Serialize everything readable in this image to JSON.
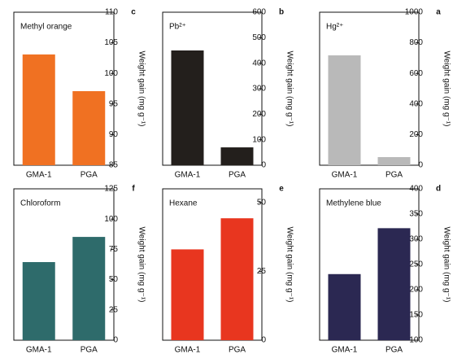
{
  "chart_data": [
    {
      "type": "bar",
      "panel": "a",
      "annotation": "Hg²⁺",
      "y_label": "Weight gain (mg g⁻¹)",
      "categories": [
        "PGA",
        "GMA-1"
      ],
      "values": [
        53,
        718
      ],
      "color": "#b9b9b9",
      "ylim": [
        0,
        1000
      ],
      "yticks": [
        0,
        200,
        400,
        600,
        800,
        1000
      ]
    },
    {
      "type": "bar",
      "panel": "b",
      "annotation": "Pb²⁺",
      "y_label": "Weight gain (mg g⁻¹)",
      "categories": [
        "PGA",
        "GMA-1"
      ],
      "values": [
        70,
        450
      ],
      "color": "#231f1c",
      "ylim": [
        0,
        600
      ],
      "yticks": [
        0,
        100,
        200,
        300,
        400,
        500,
        600
      ]
    },
    {
      "type": "bar",
      "panel": "c",
      "annotation": "Methyl orange",
      "y_label": "Weight gain (mg g⁻¹)",
      "categories": [
        "PGA",
        "GMA-1"
      ],
      "values": [
        97.1,
        103.1
      ],
      "color": "#f07122",
      "ylim": [
        85,
        110
      ],
      "yticks": [
        85,
        90,
        95,
        100,
        105,
        110
      ]
    },
    {
      "type": "bar",
      "panel": "d",
      "annotation": "Methylene blue",
      "y_label": "Weight gain (mg g⁻¹)",
      "categories": [
        "PGA",
        "GMA-1"
      ],
      "values": [
        322,
        231
      ],
      "color": "#2b2852",
      "ylim": [
        100,
        400
      ],
      "yticks": [
        100,
        150,
        200,
        250,
        300,
        350,
        400
      ]
    },
    {
      "type": "bar",
      "panel": "e",
      "annotation": "Hexane",
      "y_label": "Weight gain (mg g⁻¹)",
      "categories": [
        "PGA",
        "GMA-1"
      ],
      "values": [
        44.3,
        33
      ],
      "color": "#e8361f",
      "ylim": [
        0,
        55
      ],
      "yticks": [
        0,
        25,
        50
      ]
    },
    {
      "type": "bar",
      "panel": "f",
      "annotation": "Chloroform",
      "y_label": "Weight gain (mg g⁻¹)",
      "categories": [
        "PGA",
        "GMA-1"
      ],
      "values": [
        85.3,
        64.5
      ],
      "color": "#2e6b6b",
      "ylim": [
        0,
        125
      ],
      "yticks": [
        0,
        25,
        50,
        75,
        100,
        125
      ]
    }
  ]
}
